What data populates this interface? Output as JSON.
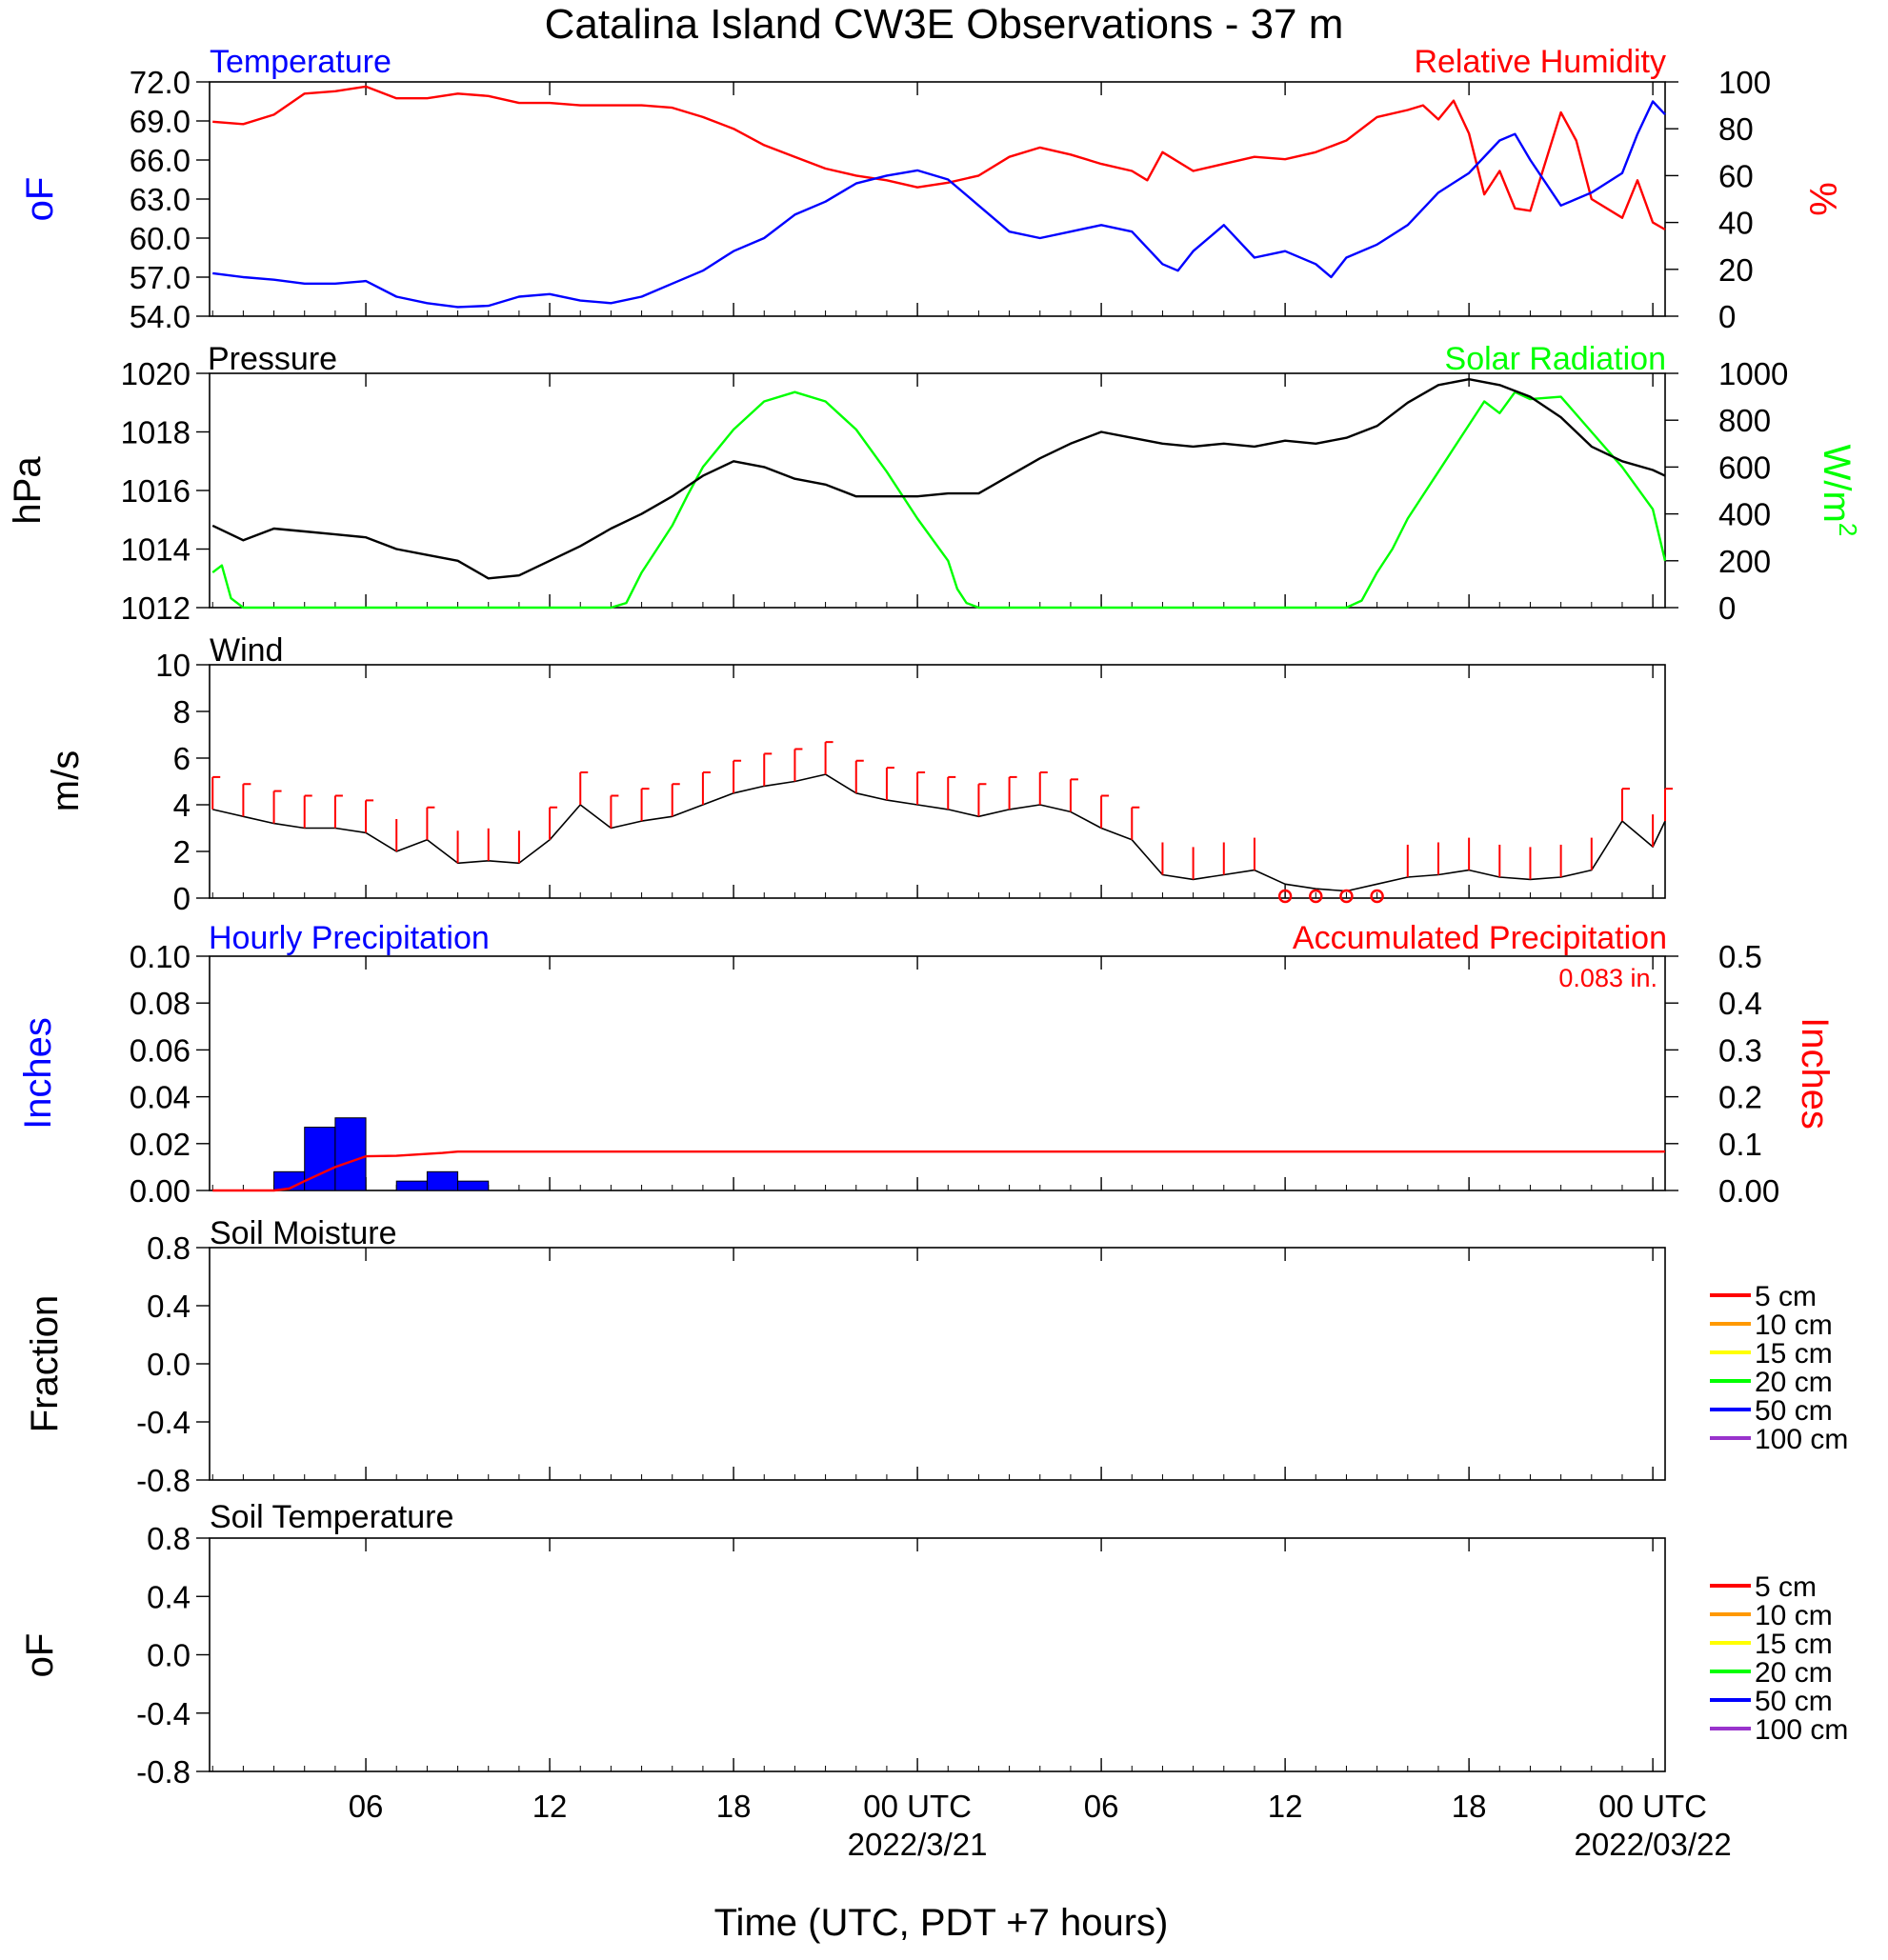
{
  "title": "Catalina Island CW3E Observations - 37 m",
  "x_axis": {
    "label": "Time (UTC, PDT +7 hours)",
    "ticks": [
      {
        "hour": 6,
        "label": "06",
        "sub": ""
      },
      {
        "hour": 12,
        "label": "12",
        "sub": ""
      },
      {
        "hour": 18,
        "label": "18",
        "sub": ""
      },
      {
        "hour": 24,
        "label": "00 UTC",
        "sub": "2022/3/21"
      },
      {
        "hour": 30,
        "label": "06",
        "sub": ""
      },
      {
        "hour": 36,
        "label": "12",
        "sub": ""
      },
      {
        "hour": 42,
        "label": "18",
        "sub": ""
      },
      {
        "hour": 48,
        "label": "00 UTC",
        "sub": "2022/03/22"
      }
    ],
    "range_hours": [
      0.9,
      48.4
    ]
  },
  "colors": {
    "temperature": "#0000ff",
    "humidity": "#ff0000",
    "pressure": "#000000",
    "solar": "#00ff00",
    "wind": "#000000",
    "barbs": "#ff0000",
    "hourly_precip": "#0000ff",
    "accum_precip": "#ff0000",
    "soil_5cm": "#ff0000",
    "soil_10cm": "#ff9900",
    "soil_15cm": "#ffff00",
    "soil_20cm": "#00ff00",
    "soil_50cm": "#0000ff",
    "soil_100cm": "#9933cc"
  },
  "panels": {
    "temp_rh": {
      "left_title": "Temperature",
      "right_title": "Relative Humidity",
      "left_unit": "oF",
      "right_unit": "%",
      "left_ticks": [
        "72.0",
        "69.0",
        "66.0",
        "63.0",
        "60.0",
        "57.0",
        "54.0"
      ],
      "right_ticks": [
        "100",
        "80",
        "60",
        "40",
        "20",
        "0"
      ]
    },
    "pressure_solar": {
      "left_title": "Pressure",
      "right_title": "Solar Radiation",
      "left_unit": "hPa",
      "right_unit": "W/m",
      "right_unit_sup": "2",
      "left_ticks": [
        "1020",
        "1018",
        "1016",
        "1014",
        "1012"
      ],
      "right_ticks": [
        "1000",
        "800",
        "600",
        "400",
        "200",
        "0"
      ]
    },
    "wind": {
      "left_title": "Wind",
      "left_unit": "m/s",
      "left_ticks": [
        "10",
        "8",
        "6",
        "4",
        "2",
        "0"
      ]
    },
    "precip": {
      "left_title": "Hourly Precipitation",
      "right_title": "Accumulated Precipitation",
      "total_label": "0.083 in.",
      "left_unit": "Inches",
      "right_unit": "Inches",
      "left_ticks": [
        "0.10",
        "0.08",
        "0.06",
        "0.04",
        "0.02",
        "0.00"
      ],
      "right_ticks": [
        "0.5",
        "0.4",
        "0.3",
        "0.2",
        "0.1",
        "0.00"
      ]
    },
    "soil_moisture": {
      "left_title": "Soil Moisture",
      "left_unit": "Fraction",
      "left_ticks": [
        "0.8",
        "0.4",
        "0.0",
        "-0.4",
        "-0.8"
      ],
      "legend": [
        "5 cm",
        "10 cm",
        "15 cm",
        "20 cm",
        "50 cm",
        "100 cm"
      ]
    },
    "soil_temperature": {
      "left_title": "Soil Temperature",
      "left_unit": "oF",
      "left_ticks": [
        "0.8",
        "0.4",
        "0.0",
        "-0.4",
        "-0.8"
      ],
      "legend": [
        "5 cm",
        "10 cm",
        "15 cm",
        "20 cm",
        "50 cm",
        "100 cm"
      ]
    }
  },
  "chart_data": [
    {
      "type": "line",
      "title": "Temperature",
      "ylabel": "oF",
      "ylim": [
        54,
        72
      ],
      "x_units": "hours since 2022-03-20 00 UTC",
      "x": [
        1,
        2,
        3,
        4,
        5,
        6,
        7,
        8,
        9,
        10,
        11,
        12,
        13,
        14,
        15,
        16,
        17,
        18,
        19,
        20,
        21,
        22,
        23,
        24,
        25,
        26,
        27,
        28,
        29,
        30,
        31,
        32,
        32.5,
        33,
        34,
        35,
        36,
        37,
        37.5,
        38,
        39,
        40,
        41,
        42,
        43,
        43.5,
        44,
        45,
        46,
        47,
        47.5,
        48,
        48.4
      ],
      "values": [
        57.3,
        57.0,
        56.8,
        56.5,
        56.5,
        56.7,
        55.5,
        55.0,
        54.7,
        54.8,
        55.5,
        55.7,
        55.2,
        55.0,
        55.5,
        56.5,
        57.5,
        59.0,
        60.0,
        61.8,
        62.8,
        64.2,
        64.8,
        65.2,
        64.5,
        62.5,
        60.5,
        60.0,
        60.5,
        61.0,
        60.5,
        58.0,
        57.5,
        59.0,
        61.0,
        58.5,
        59.0,
        58.0,
        57.0,
        58.5,
        59.5,
        61.0,
        63.5,
        65.0,
        67.5,
        68.0,
        66.0,
        62.5,
        63.5,
        65.0,
        68.0,
        70.5,
        69.5
      ]
    },
    {
      "type": "line",
      "title": "Relative Humidity",
      "ylabel": "%",
      "ylim": [
        0,
        100
      ],
      "x": [
        1,
        2,
        3,
        4,
        5,
        6,
        7,
        8,
        9,
        10,
        11,
        12,
        13,
        14,
        15,
        16,
        17,
        18,
        19,
        20,
        21,
        22,
        23,
        24,
        25,
        26,
        27,
        28,
        29,
        30,
        31,
        31.5,
        32,
        33,
        34,
        35,
        36,
        37,
        38,
        39,
        40,
        40.5,
        41,
        41.5,
        42,
        42.5,
        43,
        43.5,
        44,
        45,
        45.5,
        46,
        47,
        47.5,
        48,
        48.4
      ],
      "values": [
        83,
        82,
        86,
        95,
        96,
        98,
        93,
        93,
        95,
        94,
        91,
        91,
        90,
        90,
        90,
        89,
        85,
        80,
        73,
        68,
        63,
        60,
        58,
        55,
        57,
        60,
        68,
        72,
        69,
        65,
        62,
        58,
        70,
        62,
        65,
        68,
        67,
        70,
        75,
        85,
        88,
        90,
        84,
        92,
        78,
        52,
        62,
        46,
        45,
        87,
        75,
        50,
        42,
        58,
        40,
        37
      ]
    },
    {
      "type": "line",
      "title": "Pressure",
      "ylabel": "hPa",
      "ylim": [
        1012,
        1020
      ],
      "x": [
        1,
        2,
        3,
        4,
        5,
        6,
        7,
        8,
        9,
        10,
        11,
        12,
        13,
        14,
        15,
        16,
        17,
        18,
        19,
        20,
        21,
        22,
        23,
        24,
        25,
        26,
        27,
        28,
        29,
        30,
        31,
        32,
        33,
        34,
        35,
        36,
        37,
        38,
        39,
        40,
        41,
        42,
        43,
        44,
        45,
        46,
        47,
        48,
        48.4
      ],
      "values": [
        1014.8,
        1014.3,
        1014.7,
        1014.6,
        1014.5,
        1014.4,
        1014.0,
        1013.8,
        1013.6,
        1013.0,
        1013.1,
        1013.6,
        1014.1,
        1014.7,
        1015.2,
        1015.8,
        1016.5,
        1017.0,
        1016.8,
        1016.4,
        1016.2,
        1015.8,
        1015.8,
        1015.8,
        1015.9,
        1015.9,
        1016.5,
        1017.1,
        1017.6,
        1018.0,
        1017.8,
        1017.6,
        1017.5,
        1017.6,
        1017.5,
        1017.7,
        1017.6,
        1017.8,
        1018.2,
        1019.0,
        1019.6,
        1019.8,
        1019.6,
        1019.2,
        1018.5,
        1017.5,
        1017.0,
        1016.7,
        1016.5
      ]
    },
    {
      "type": "line",
      "title": "Solar Radiation",
      "ylabel": "W/m2",
      "ylim": [
        0,
        1000
      ],
      "x": [
        1,
        1.3,
        1.6,
        2,
        14,
        14.5,
        15,
        15.5,
        16,
        16.5,
        17,
        18,
        19,
        20,
        21,
        22,
        23,
        24,
        25,
        25.3,
        25.6,
        26,
        38,
        38.5,
        39,
        39.5,
        40,
        41,
        42,
        42.5,
        43,
        43.5,
        44,
        45,
        46,
        47,
        48,
        48.4
      ],
      "values": [
        150,
        180,
        40,
        0,
        0,
        20,
        150,
        250,
        350,
        480,
        600,
        760,
        880,
        920,
        880,
        760,
        580,
        380,
        200,
        80,
        20,
        0,
        0,
        30,
        150,
        250,
        380,
        580,
        780,
        880,
        830,
        920,
        890,
        900,
        750,
        600,
        420,
        200
      ]
    },
    {
      "type": "line",
      "title": "Wind",
      "ylabel": "m/s",
      "ylim": [
        0,
        10
      ],
      "x": [
        1,
        2,
        3,
        4,
        5,
        6,
        7,
        8,
        9,
        10,
        11,
        12,
        13,
        14,
        15,
        16,
        17,
        18,
        19,
        20,
        21,
        22,
        23,
        24,
        25,
        26,
        27,
        28,
        29,
        30,
        31,
        32,
        33,
        34,
        35,
        36,
        37,
        38,
        39,
        40,
        41,
        42,
        43,
        44,
        45,
        46,
        47,
        48,
        48.4
      ],
      "values": [
        3.8,
        3.5,
        3.2,
        3.0,
        3.0,
        2.8,
        2.0,
        2.5,
        1.5,
        1.6,
        1.5,
        2.5,
        4.0,
        3.0,
        3.3,
        3.5,
        4.0,
        4.5,
        4.8,
        5.0,
        5.3,
        4.5,
        4.2,
        4.0,
        3.8,
        3.5,
        3.8,
        4.0,
        3.7,
        3.0,
        2.5,
        1.0,
        0.8,
        1.0,
        1.2,
        0.6,
        0.4,
        0.3,
        0.6,
        0.9,
        1.0,
        1.2,
        0.9,
        0.8,
        0.9,
        1.2,
        3.3,
        2.2,
        3.3
      ]
    },
    {
      "type": "bar",
      "title": "Hourly Precipitation",
      "ylabel": "Inches",
      "ylim": [
        0,
        0.1
      ],
      "categories": [
        "03",
        "04",
        "05",
        "07",
        "08",
        "09"
      ],
      "bar_start_hours": [
        3,
        4,
        5,
        7,
        8,
        9
      ],
      "values": [
        0.008,
        0.027,
        0.031,
        0.004,
        0.008,
        0.004
      ]
    },
    {
      "type": "line",
      "title": "Accumulated Precipitation",
      "ylabel": "Inches",
      "ylim": [
        0,
        0.5
      ],
      "x": [
        1,
        3,
        3.5,
        4,
        5,
        6,
        7,
        8,
        8.5,
        9,
        10,
        48.4
      ],
      "values": [
        0,
        0,
        0.004,
        0.02,
        0.05,
        0.073,
        0.074,
        0.078,
        0.08,
        0.083,
        0.083,
        0.083
      ]
    }
  ]
}
